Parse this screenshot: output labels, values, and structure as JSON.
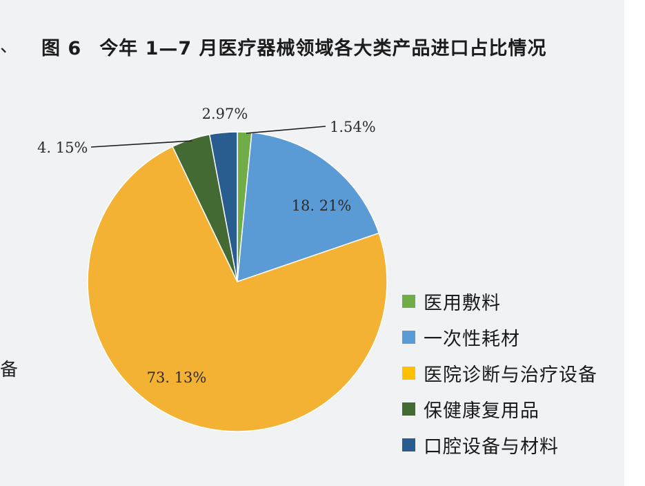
{
  "edge_text": {
    "left_top": "、",
    "left_bottom": "备"
  },
  "chart_data": {
    "type": "pie",
    "title_label": "图 6",
    "title": "今年 1—7 月医疗器械领域各大类产品进口占比情况",
    "slices": [
      {
        "name": "医用敷料",
        "value": 1.54,
        "label": "1.54%",
        "color": "#70ad47"
      },
      {
        "name": "一次性耗材",
        "value": 18.21,
        "label": "18. 21%",
        "color": "#5b9bd5"
      },
      {
        "name": "医院诊断与治疗设备",
        "value": 73.13,
        "label": "73. 13%",
        "color": "#f4b234"
      },
      {
        "name": "保健康复用品",
        "value": 4.15,
        "label": "4. 15%",
        "color": "#436a33"
      },
      {
        "name": "口腔设备与材料",
        "value": 2.97,
        "label": "2.97%",
        "color": "#2a5d8f"
      }
    ],
    "legend": {
      "position": "right",
      "items": [
        {
          "name": "医用敷料",
          "color": "#70ad47"
        },
        {
          "name": "一次性耗材",
          "color": "#5b9bd5"
        },
        {
          "name": "医院诊断与治疗设备",
          "color": "#ffc000"
        },
        {
          "name": "保健康复用品",
          "color": "#436a33"
        },
        {
          "name": "口腔设备与材料",
          "color": "#2a5d8f"
        }
      ]
    }
  }
}
